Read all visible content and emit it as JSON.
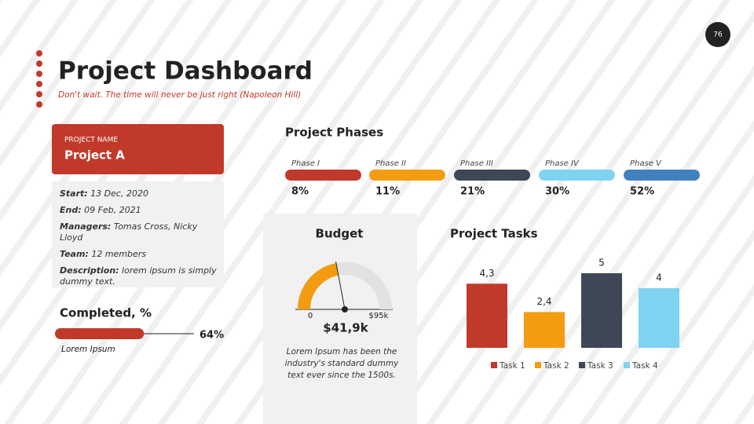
{
  "page_number": "76",
  "header": {
    "title": "Project Dashboard",
    "subtitle": "Don't wait. The time will never be just right (Napoleon Hill)"
  },
  "project": {
    "label": "PROJECT NAME",
    "name": "Project A",
    "details": [
      {
        "label": "Start:",
        "value": "13 Dec, 2020"
      },
      {
        "label": "End:",
        "value": "09 Feb, 2021"
      },
      {
        "label": "Managers:",
        "value": "Tomas Cross, Nicky Lloyd"
      },
      {
        "label": "Team:",
        "value": "12 members"
      },
      {
        "label": "Description:",
        "value": "lorem ipsum is simply dummy text."
      }
    ]
  },
  "completed": {
    "title": "Completed, %",
    "value": 64,
    "value_label": "64%",
    "caption": "Lorem Ipsum"
  },
  "phases": {
    "title": "Project Phases",
    "items": [
      {
        "name": "Phase I",
        "value": "8%",
        "color": "#c0392b"
      },
      {
        "name": "Phase II",
        "value": "11%",
        "color": "#f39c12"
      },
      {
        "name": "Phase III",
        "value": "21%",
        "color": "#3d4756"
      },
      {
        "name": "Phase IV",
        "value": "30%",
        "color": "#7fd3f0"
      },
      {
        "name": "Phase V",
        "value": "52%",
        "color": "#4080bf"
      }
    ]
  },
  "budget": {
    "title": "Budget",
    "value": 41.9,
    "value_label": "$41,9k",
    "min": 0,
    "max": {
      "value": 95,
      "label": "$95k"
    },
    "color": "#f39c12",
    "caption": "Lorem Ipsum has been the industry's standard dummy text ever since the 1500s."
  },
  "chart_data": {
    "type": "bar",
    "title": "Project Tasks",
    "categories": [
      "Task 1",
      "Task 2",
      "Task 3",
      "Task 4"
    ],
    "values": [
      4.3,
      2.4,
      5,
      4
    ],
    "value_labels": [
      "4,3",
      "2,4",
      "5",
      "4"
    ],
    "colors": [
      "#c0392b",
      "#f39c12",
      "#3d4756",
      "#7fd3f0"
    ]
  }
}
